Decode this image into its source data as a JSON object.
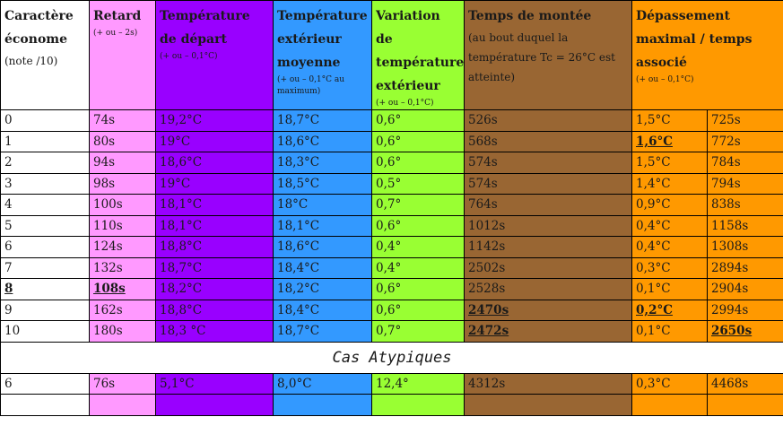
{
  "headers": {
    "c0": {
      "main": "Caractère économe",
      "note": "(note /10)"
    },
    "c1": {
      "main": "Retard",
      "note": "(+ ou – 2s)"
    },
    "c2": {
      "main": "Température de départ",
      "note": "(+ ou – 0,1°C)"
    },
    "c3": {
      "main": "Température extérieur moyenne",
      "note": "(+ ou – 0,1°C au maximum)"
    },
    "c4": {
      "main": "Variation de température extérieur",
      "note": "(+ ou – 0,1°C)"
    },
    "c5": {
      "main": "Temps de montée",
      "note": "(au bout duquel la température Tc = 26°C est atteinte)"
    },
    "c6": {
      "main": "Dépassement maximal / temps associé",
      "note": "(+ ou – 0,1°C)"
    }
  },
  "rows": [
    [
      "0",
      "74s",
      "19,2°C",
      "18,7°C",
      "0,6°",
      "526s",
      "1,5°C",
      "725s"
    ],
    [
      "1",
      "80s",
      "19°C",
      "18,6°C",
      "0,6°",
      "568s",
      "1,6°C",
      "772s"
    ],
    [
      "2",
      "94s",
      "18,6°C",
      "18,3°C",
      "0,6°",
      "574s",
      "1,5°C",
      "784s"
    ],
    [
      "3",
      "98s",
      "19°C",
      "18,5°C",
      "0,5°",
      "574s",
      "1,4°C",
      "794s"
    ],
    [
      "4",
      "100s",
      "18,1°C",
      "18°C",
      "0,7°",
      "764s",
      "0,9°C",
      "838s"
    ],
    [
      "5",
      "110s",
      "18,1°C",
      "18,1°C",
      "0,6°",
      "1012s",
      "0,4°C",
      "1158s"
    ],
    [
      "6",
      "124s",
      "18,8°C",
      "18,6°C",
      "0,4°",
      "1142s",
      "0,4°C",
      "1308s"
    ],
    [
      "7",
      "132s",
      "18,7°C",
      "18,4°C",
      "0,4°",
      "2502s",
      "0,3°C",
      "2894s"
    ],
    [
      "8",
      "108s",
      "18,2°C",
      "18,2°C",
      "0,6°",
      "2528s",
      "0,1°C",
      "2904s"
    ],
    [
      "9",
      "162s",
      "18,8°C",
      "18,4°C",
      "0,6°",
      "2470s",
      "0,2°C",
      "2994s"
    ],
    [
      "10",
      "180s",
      "18,3 °C",
      "18,7°C",
      "0,7°",
      "2472s",
      "0,1°C",
      "2650s"
    ]
  ],
  "bold_cells": [
    [
      1,
      6
    ],
    [
      8,
      0
    ],
    [
      8,
      1
    ],
    [
      9,
      5
    ],
    [
      9,
      6
    ],
    [
      10,
      5
    ],
    [
      10,
      7
    ]
  ],
  "section_title": "Cas Atypiques",
  "atypical_rows": [
    [
      "6",
      "76s",
      "5,1°C",
      "8,0°C",
      "12,4°",
      "4312s",
      "0,3°C",
      "4468s"
    ],
    [
      "",
      "",
      "",
      "",
      "",
      "",
      "",
      ""
    ]
  ],
  "colors": {
    "c0": "#ffffff",
    "c1": "#ff99ff",
    "c2": "#9900ff",
    "c3": "#3399ff",
    "c4": "#99ff33",
    "c5": "#996633",
    "c6": "#ff9900"
  }
}
